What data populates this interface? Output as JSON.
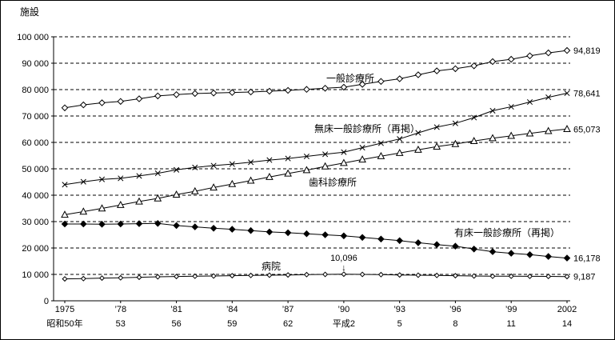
{
  "chart_data": {
    "type": "line",
    "title": "",
    "ylabel": "施設",
    "ylim": [
      0,
      100000
    ],
    "ytick_step": 10000,
    "y_tick_labels": [
      "0",
      "10 000",
      "20 000",
      "30 000",
      "40 000",
      "50 000",
      "60 000",
      "70 000",
      "80 000",
      "90 000",
      "100 000"
    ],
    "grid": "horizontal-dashed",
    "legend_position": "inline-labels",
    "x_range": [
      1975,
      2002
    ],
    "years": [
      1975,
      1976,
      1977,
      1978,
      1979,
      1980,
      1981,
      1982,
      1983,
      1984,
      1985,
      1986,
      1987,
      1988,
      1989,
      1990,
      1991,
      1992,
      1993,
      1994,
      1995,
      1996,
      1997,
      1998,
      1999,
      2000,
      2001,
      2002
    ],
    "x_ticks": [
      {
        "year": 1975,
        "label": "1975",
        "era_label": "昭和50年"
      },
      {
        "year": 1978,
        "label": "’78",
        "era_label": "53"
      },
      {
        "year": 1981,
        "label": "’81",
        "era_label": "56"
      },
      {
        "year": 1984,
        "label": "’84",
        "era_label": "59"
      },
      {
        "year": 1987,
        "label": "’87",
        "era_label": "62"
      },
      {
        "year": 1990,
        "label": "’90",
        "era_label": "平成2"
      },
      {
        "year": 1993,
        "label": "’93",
        "era_label": "5"
      },
      {
        "year": 1996,
        "label": "’96",
        "era_label": "8"
      },
      {
        "year": 1999,
        "label": "’99",
        "era_label": "11"
      },
      {
        "year": 2002,
        "label": "2002",
        "era_label": "14"
      }
    ],
    "series": [
      {
        "name": "一般診療所",
        "marker": "open-diamond",
        "end_label": "94,819",
        "values": [
          73100,
          74200,
          75000,
          75500,
          76500,
          77600,
          78100,
          78500,
          78700,
          78900,
          79100,
          79400,
          79700,
          80100,
          80500,
          80900,
          82000,
          83100,
          84100,
          85600,
          87100,
          87900,
          89000,
          90600,
          91500,
          92800,
          93900,
          94819
        ]
      },
      {
        "name": "無床一般診療所（再掲）",
        "marker": "x",
        "end_label": "78,641",
        "values": [
          44000,
          45100,
          46000,
          46400,
          47300,
          48300,
          49600,
          50500,
          51200,
          51800,
          52500,
          53300,
          53900,
          54700,
          55500,
          56300,
          58000,
          59700,
          61300,
          63600,
          65800,
          67200,
          69400,
          72000,
          73500,
          75300,
          77100,
          78641
        ]
      },
      {
        "name": "歯科診療所",
        "marker": "open-triangle",
        "end_label": "65,073",
        "values": [
          32600,
          33800,
          35000,
          36300,
          37600,
          38800,
          40200,
          41500,
          42900,
          44200,
          45500,
          46900,
          48200,
          49500,
          50900,
          52200,
          53500,
          54800,
          56000,
          57200,
          58400,
          59400,
          60500,
          61600,
          62500,
          63400,
          64300,
          65073
        ]
      },
      {
        "name": "有床一般診療所（再掲）",
        "marker": "filled-diamond",
        "end_label": "16,178",
        "values": [
          29100,
          29100,
          29000,
          29100,
          29200,
          29300,
          28500,
          28000,
          27500,
          27100,
          26600,
          26100,
          25800,
          25400,
          25000,
          24600,
          24000,
          23400,
          22800,
          22000,
          21300,
          20700,
          19600,
          18600,
          18000,
          17500,
          16800,
          16178
        ]
      },
      {
        "name": "病院",
        "marker": "small-open-diamond",
        "end_label": "9,187",
        "values": [
          8300,
          8400,
          8600,
          8700,
          8900,
          9100,
          9200,
          9300,
          9400,
          9500,
          9600,
          9700,
          9800,
          9900,
          10000,
          10096,
          10000,
          9900,
          9800,
          9700,
          9600,
          9500,
          9400,
          9300,
          9290,
          9270,
          9240,
          9187
        ]
      }
    ],
    "annotations": [
      {
        "text": "10,096",
        "arrow": "↓",
        "x": 1990,
        "y": 10096,
        "series": "病院"
      }
    ]
  }
}
